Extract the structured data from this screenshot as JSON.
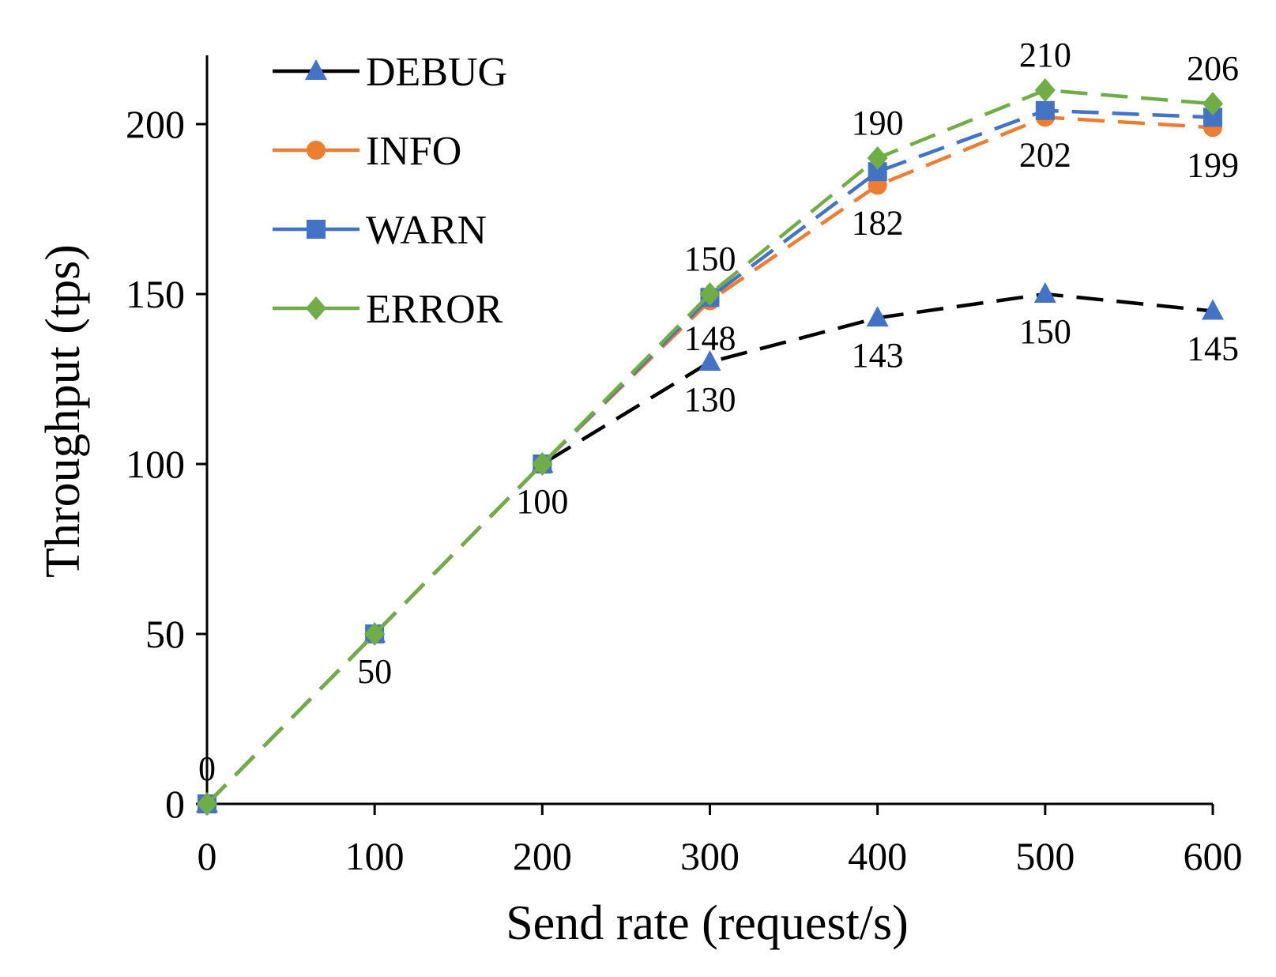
{
  "chart_data": {
    "type": "line",
    "title": "",
    "xlabel": "Send rate (request/s)",
    "ylabel": "Throughput (tps)",
    "x": [
      0,
      100,
      200,
      300,
      400,
      500,
      600
    ],
    "xlim": [
      0,
      600
    ],
    "ylim": [
      0,
      200
    ],
    "x_ticks": [
      "0",
      "100",
      "200",
      "300",
      "400",
      "500",
      "600"
    ],
    "y_ticks": [
      "0",
      "50",
      "100",
      "150",
      "200"
    ],
    "grid": false,
    "legend_position": "top-left",
    "series": [
      {
        "name": "DEBUG",
        "color": "#000000",
        "marker_color": "#4472C4",
        "marker": "triangle",
        "values": [
          0,
          50,
          100,
          130,
          143,
          150,
          145
        ]
      },
      {
        "name": "INFO",
        "color": "#ED7D31",
        "marker_color": "#ED7D31",
        "marker": "circle",
        "values": [
          0,
          50,
          100,
          148,
          182,
          202,
          199
        ]
      },
      {
        "name": "WARN",
        "color": "#4472C4",
        "marker_color": "#4472C4",
        "marker": "square",
        "values": [
          0,
          50,
          100,
          149,
          186,
          204,
          202
        ]
      },
      {
        "name": "ERROR",
        "color": "#70AD47",
        "marker_color": "#70AD47",
        "marker": "diamond",
        "values": [
          0,
          50,
          100,
          150,
          190,
          210,
          206
        ]
      }
    ],
    "annotations": [
      {
        "text": "0",
        "x": 0,
        "y": 0,
        "placement": "above"
      },
      {
        "text": "50",
        "x": 100,
        "y": 50,
        "placement": "below"
      },
      {
        "text": "100",
        "x": 200,
        "y": 100,
        "placement": "below"
      },
      {
        "text": "150",
        "x": 300,
        "y": 150,
        "placement": "above"
      },
      {
        "text": "148",
        "x": 300,
        "y": 148,
        "placement": "below-left"
      },
      {
        "text": "130",
        "x": 300,
        "y": 130,
        "placement": "below"
      },
      {
        "text": "190",
        "x": 400,
        "y": 190,
        "placement": "above"
      },
      {
        "text": "182",
        "x": 400,
        "y": 182,
        "placement": "below"
      },
      {
        "text": "143",
        "x": 400,
        "y": 143,
        "placement": "below"
      },
      {
        "text": "210",
        "x": 500,
        "y": 210,
        "placement": "above"
      },
      {
        "text": "202",
        "x": 500,
        "y": 202,
        "placement": "below"
      },
      {
        "text": "150",
        "x": 500,
        "y": 150,
        "placement": "below"
      },
      {
        "text": "206",
        "x": 600,
        "y": 206,
        "placement": "above"
      },
      {
        "text": "199",
        "x": 600,
        "y": 199,
        "placement": "below"
      },
      {
        "text": "145",
        "x": 600,
        "y": 145,
        "placement": "below"
      }
    ]
  }
}
